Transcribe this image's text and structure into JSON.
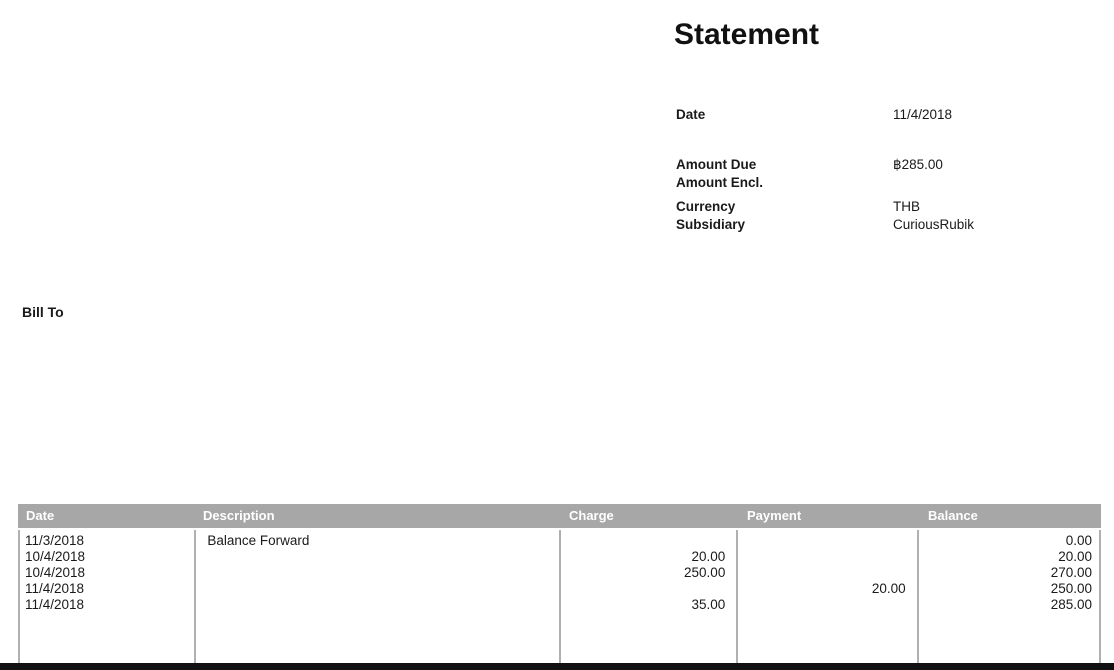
{
  "header": {
    "title": "Statement"
  },
  "info": {
    "rows": [
      {
        "label": "Date",
        "value": "11/4/2018"
      },
      {
        "label": "Amount Due",
        "value": "฿285.00"
      },
      {
        "label": "Amount Encl.",
        "value": ""
      },
      {
        "label": "Currency",
        "value": "THB"
      },
      {
        "label": "Subsidiary",
        "value": "CuriousRubik"
      }
    ]
  },
  "bill_to": {
    "label": "Bill To"
  },
  "table": {
    "columns": [
      "Date",
      "Description",
      "Charge",
      "Payment",
      "Balance"
    ],
    "rows": [
      {
        "date": "11/3/2018",
        "description": "Balance Forward",
        "charge": "",
        "payment": "",
        "balance": "0.00"
      },
      {
        "date": "10/4/2018",
        "description": "",
        "charge": "20.00",
        "payment": "",
        "balance": "20.00"
      },
      {
        "date": "10/4/2018",
        "description": "",
        "charge": "250.00",
        "payment": "",
        "balance": "270.00"
      },
      {
        "date": "11/4/2018",
        "description": "",
        "charge": "",
        "payment": "20.00",
        "balance": "250.00"
      },
      {
        "date": "11/4/2018",
        "description": "",
        "charge": "35.00",
        "payment": "",
        "balance": "285.00"
      }
    ]
  },
  "colors": {
    "page_bg": "#ffffff",
    "table_header_bg": "#a7a7a7",
    "table_header_text": "#ffffff",
    "table_border": "#b0b0b0",
    "text": "#1a1a1a",
    "bottom_bar": "#111111"
  }
}
